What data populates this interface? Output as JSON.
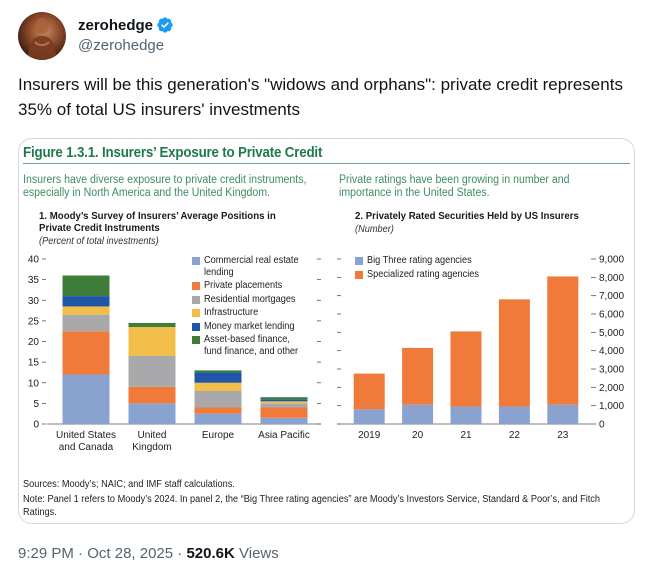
{
  "tweet": {
    "display_name": "zerohedge",
    "handle": "@zerohedge",
    "text": "Insurers will be this generation's \"widows and orphans\": private credit represents 35% of total US insurers' investments",
    "time": "9:29 PM",
    "date": "Oct 28, 2025",
    "separator": "·",
    "views_count": "520.6K",
    "views_label": "Views"
  },
  "figure": {
    "title": "Figure 1.3.1. Insurers’ Exposure to Private Credit",
    "intro_left": "Insurers have diverse exposure to private credit instruments, especially in North America and the United Kingdom.",
    "intro_right": "Private ratings have been growing in number and importance in the United States.",
    "sources": "Sources: Moody’s; NAIC; and IMF staff calculations.",
    "note": "Note: Panel 1 refers to Moody’s 2024. In panel 2, the “Big Three rating agencies” are Moody’s Investors Service, Standard & Poor’s, and Fitch Ratings."
  },
  "chart_data": [
    {
      "type": "bar",
      "stacked": true,
      "title": "1. Moody’s Survey of Insurers’ Average Positions in Private Credit Instruments",
      "subtitle": "(Percent of total investments)",
      "categories": [
        "United States\nand Canada",
        "United\nKingdom",
        "Europe",
        "Asia Pacific"
      ],
      "ylim": [
        0,
        40
      ],
      "yticks": [
        0,
        5,
        10,
        15,
        20,
        25,
        30,
        35,
        40
      ],
      "series": [
        {
          "name": "Commercial real estate lending",
          "color": "#8aa2d0",
          "values": [
            12,
            5,
            2.5,
            1.5
          ]
        },
        {
          "name": "Private placements",
          "color": "#f07a3a",
          "values": [
            10.5,
            4,
            1.5,
            2.5
          ]
        },
        {
          "name": "Residential mortgages",
          "color": "#a9a9ab",
          "values": [
            4,
            7.5,
            4,
            1
          ]
        },
        {
          "name": "Infrastructure",
          "color": "#f2be4a",
          "values": [
            2,
            7,
            2,
            0.5
          ]
        },
        {
          "name": "Money market lending",
          "color": "#1f56a8",
          "values": [
            2.5,
            0,
            2.5,
            0.5
          ]
        },
        {
          "name": "Asset-based finance, fund finance, and other",
          "color": "#3f7d3a",
          "values": [
            5,
            1,
            0.5,
            0.5
          ]
        }
      ]
    },
    {
      "type": "bar",
      "stacked": true,
      "title": "2. Privately Rated Securities Held by US Insurers",
      "subtitle": "(Number)",
      "categories": [
        "2019",
        "20",
        "21",
        "22",
        "23"
      ],
      "ylim": [
        0,
        9000
      ],
      "yticks": [
        0,
        1000,
        2000,
        3000,
        4000,
        5000,
        6000,
        7000,
        8000,
        9000
      ],
      "ytick_labels": [
        "0",
        "1,000",
        "2,000",
        "3,000",
        "4,000",
        "5,000",
        "6,000",
        "7,000",
        "8,000",
        "9,000"
      ],
      "series": [
        {
          "name": "Big Three rating agencies",
          "color": "#8aa2d0",
          "values": [
            800,
            1050,
            950,
            950,
            1050
          ]
        },
        {
          "name": "Specialized rating agencies",
          "color": "#f07a3a",
          "values": [
            1950,
            3100,
            4100,
            5850,
            7000
          ]
        }
      ]
    }
  ]
}
